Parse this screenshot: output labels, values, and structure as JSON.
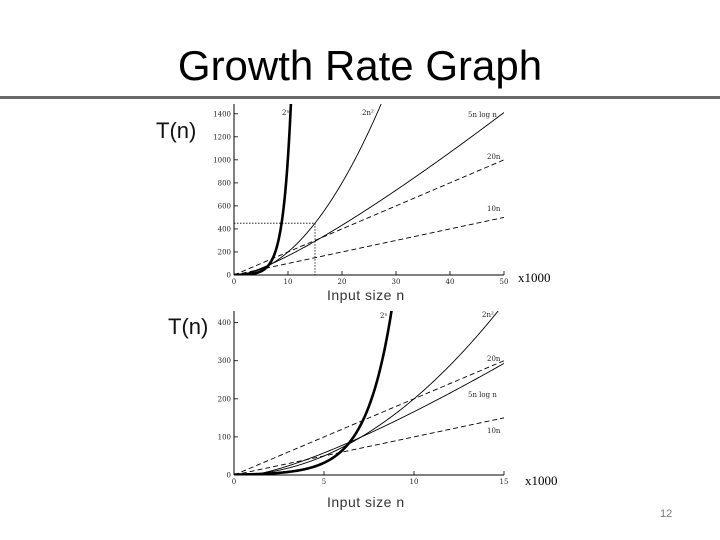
{
  "slide": {
    "title": "Growth Rate Graph",
    "page_number": "12"
  },
  "chart_data": [
    {
      "type": "line",
      "ylabel": "T(n)",
      "xlabel": "Input size n",
      "x_scale_note": "x1000",
      "xlim": [
        0,
        50
      ],
      "ylim": [
        0,
        1450
      ],
      "xticks": [
        0,
        10,
        20,
        30,
        40,
        50
      ],
      "yticks": [
        0,
        200,
        400,
        600,
        800,
        1000,
        1200,
        1400
      ],
      "highlight_region": {
        "x": [
          0,
          15
        ],
        "y": [
          0,
          450
        ]
      },
      "series": [
        {
          "name": "2ⁿ",
          "style": "bold",
          "function": "2^n"
        },
        {
          "name": "2n²",
          "style": "solid",
          "function": "2n^2"
        },
        {
          "name": "5n log n",
          "style": "solid",
          "function": "5n log2 n"
        },
        {
          "name": "20n",
          "style": "dashed",
          "function": "20n"
        },
        {
          "name": "10n",
          "style": "dashed",
          "function": "10n"
        }
      ]
    },
    {
      "type": "line",
      "ylabel": "T(n)",
      "xlabel": "Input size n",
      "x_scale_note": "x1000",
      "xlim": [
        0,
        15
      ],
      "ylim": [
        0,
        420
      ],
      "xticks": [
        0,
        5,
        10,
        15
      ],
      "yticks": [
        0,
        100,
        200,
        300,
        400
      ],
      "series": [
        {
          "name": "2ⁿ",
          "style": "bold",
          "function": "2^n"
        },
        {
          "name": "2n²",
          "style": "solid",
          "function": "2n^2"
        },
        {
          "name": "20n",
          "style": "dashed",
          "function": "20n"
        },
        {
          "name": "5n log n",
          "style": "solid",
          "function": "5n log2 n"
        },
        {
          "name": "10n",
          "style": "dashed",
          "function": "10n"
        }
      ]
    }
  ]
}
